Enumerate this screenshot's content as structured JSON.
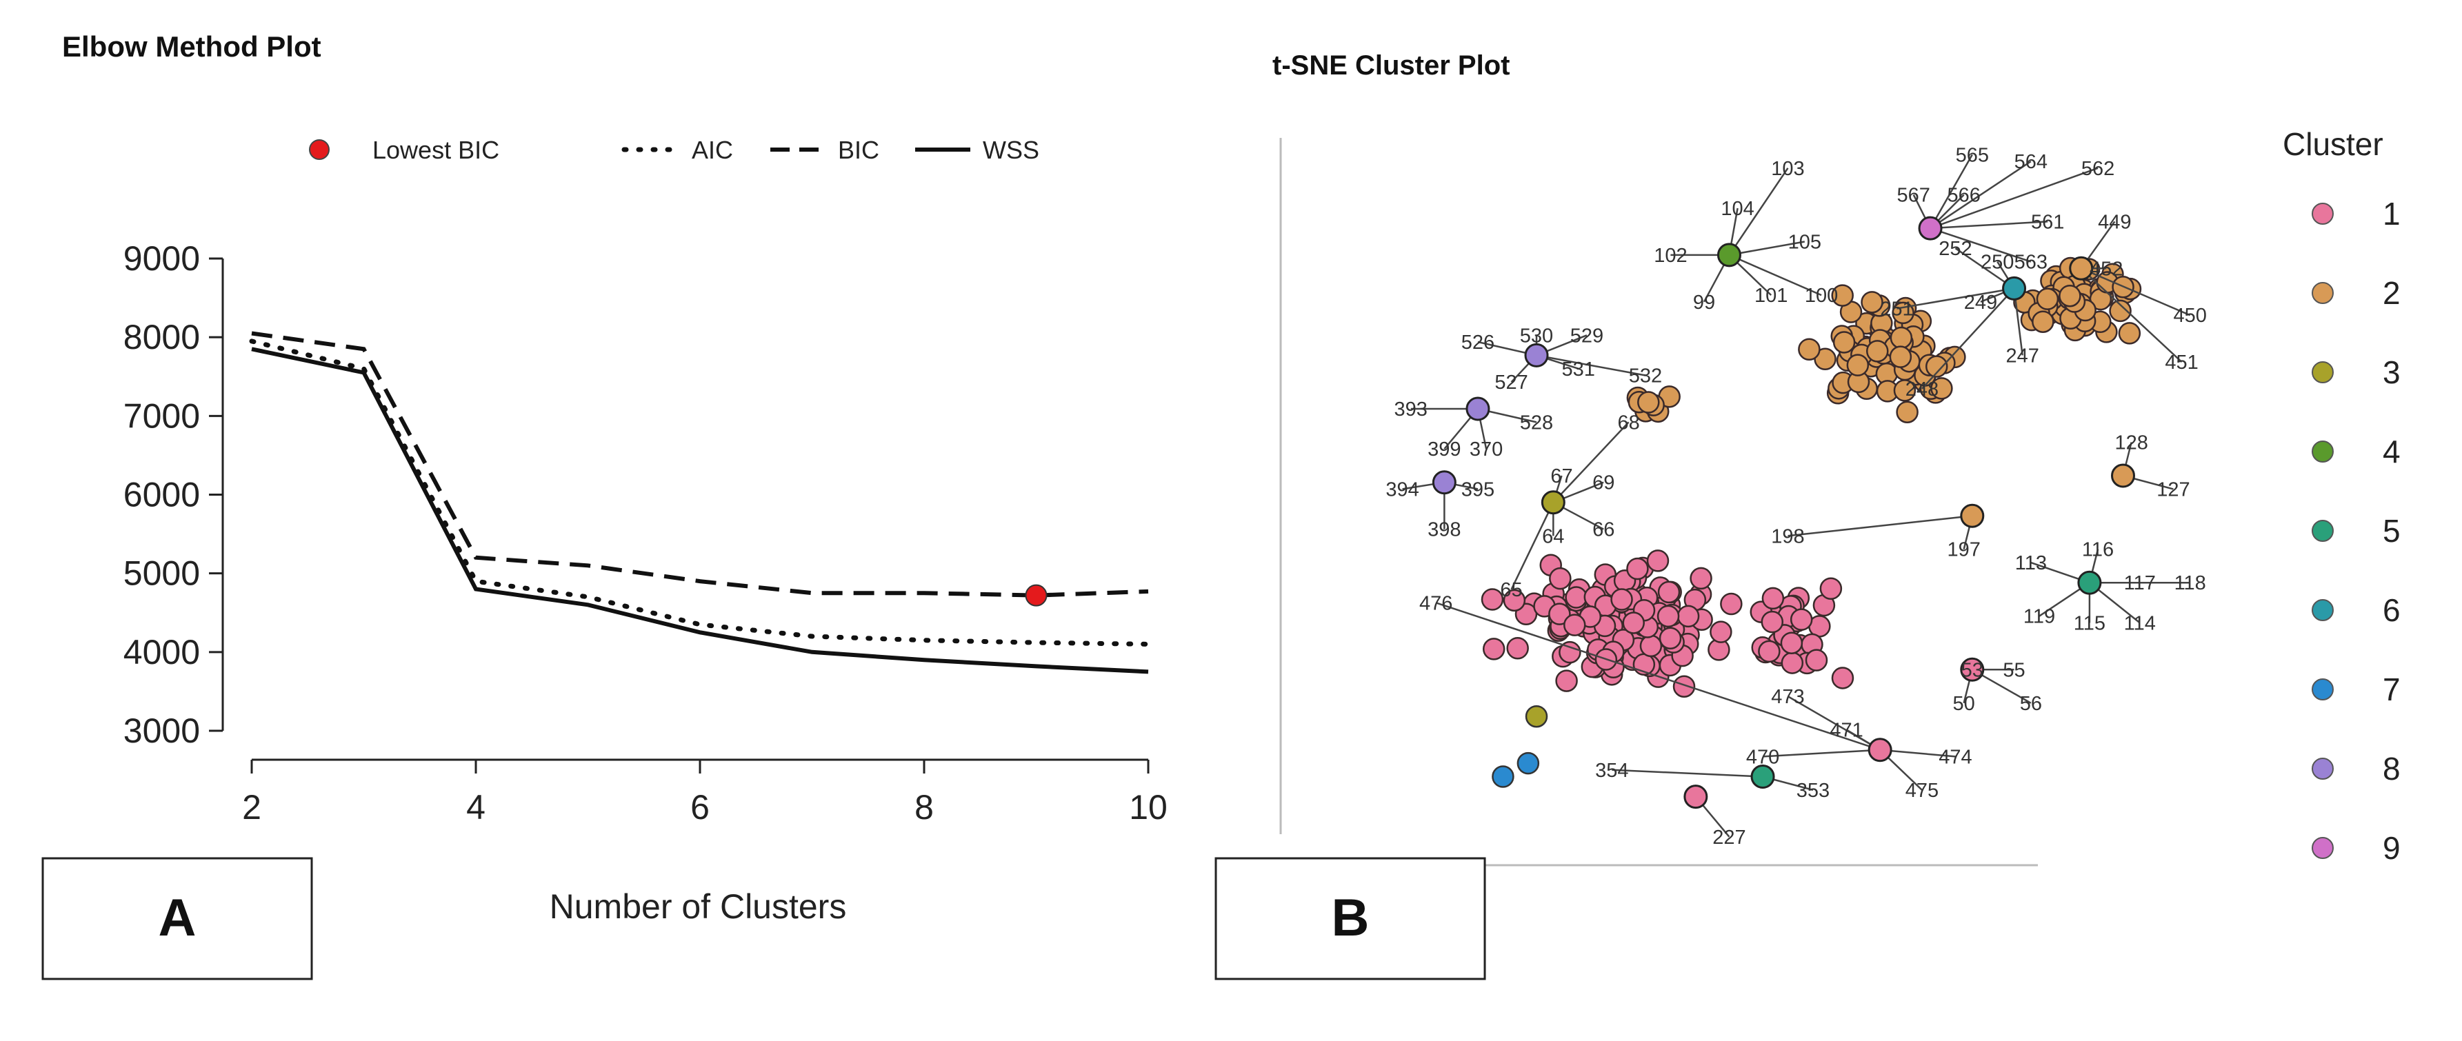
{
  "chart_data": [
    {
      "type": "line",
      "title": "Elbow Method Plot",
      "panel_label": "A",
      "xlabel": "Number of Clusters",
      "ylabel": "",
      "xlim": [
        2,
        10
      ],
      "ylim": [
        3000,
        9000
      ],
      "x": [
        2,
        3,
        4,
        5,
        6,
        7,
        8,
        9,
        10
      ],
      "xticks": [
        "2",
        "4",
        "6",
        "8",
        "10"
      ],
      "yticks": [
        "3000",
        "4000",
        "5000",
        "6000",
        "7000",
        "8000",
        "9000"
      ],
      "grid": false,
      "legend_position": "top",
      "series": [
        {
          "name": "AIC",
          "style": "dotted",
          "values": [
            7950,
            7600,
            4900,
            4700,
            4350,
            4200,
            4150,
            4120,
            4100
          ]
        },
        {
          "name": "BIC",
          "style": "dashed",
          "values": [
            8050,
            7850,
            5200,
            5100,
            4900,
            4750,
            4750,
            4720,
            4770
          ]
        },
        {
          "name": "WSS",
          "style": "solid",
          "values": [
            7850,
            7550,
            4800,
            4600,
            4250,
            4000,
            3900,
            3820,
            3750
          ]
        }
      ],
      "highlight": {
        "name": "Lowest BIC",
        "x": 9,
        "y": 4720,
        "color": "#e41a1c"
      }
    },
    {
      "type": "scatter",
      "title": "t-SNE Cluster Plot",
      "panel_label": "B",
      "xlim": [
        0,
        100
      ],
      "ylim": [
        0,
        100
      ],
      "legend_title": "Cluster",
      "legend_position": "right",
      "clusters": [
        {
          "name": "1",
          "color": "#e8769c"
        },
        {
          "name": "2",
          "color": "#d89a56"
        },
        {
          "name": "3",
          "color": "#a8a22a"
        },
        {
          "name": "4",
          "color": "#5a9a2c"
        },
        {
          "name": "5",
          "color": "#2aa07a"
        },
        {
          "name": "6",
          "color": "#2a9aa8"
        },
        {
          "name": "7",
          "color": "#2a8ad0"
        },
        {
          "name": "8",
          "color": "#9a82d4"
        },
        {
          "name": "9",
          "color": "#d070c8"
        }
      ],
      "labeled_points": [
        {
          "c": 4,
          "x": 43,
          "y": 83,
          "labels": [
            {
              "t": "103",
              "x": 50,
              "y": 96
            },
            {
              "t": "104",
              "x": 44,
              "y": 90
            },
            {
              "t": "102",
              "x": 36,
              "y": 83
            },
            {
              "t": "105",
              "x": 52,
              "y": 85
            },
            {
              "t": "99",
              "x": 40,
              "y": 76
            },
            {
              "t": "101",
              "x": 48,
              "y": 77
            },
            {
              "t": "100",
              "x": 54,
              "y": 77
            }
          ]
        },
        {
          "c": 9,
          "x": 67,
          "y": 87,
          "labels": [
            {
              "t": "565",
              "x": 72,
              "y": 98
            },
            {
              "t": "564",
              "x": 79,
              "y": 97
            },
            {
              "t": "562",
              "x": 87,
              "y": 96
            },
            {
              "t": "567",
              "x": 65,
              "y": 92
            },
            {
              "t": "566",
              "x": 71,
              "y": 92
            },
            {
              "t": "561",
              "x": 81,
              "y": 88
            },
            {
              "t": "563",
              "x": 79,
              "y": 82
            }
          ]
        },
        {
          "c": 6,
          "x": 77,
          "y": 78,
          "labels": [
            {
              "t": "252",
              "x": 70,
              "y": 84
            },
            {
              "t": "250",
              "x": 75,
              "y": 82
            },
            {
              "t": "249",
              "x": 73,
              "y": 76
            },
            {
              "t": "251",
              "x": 63,
              "y": 75
            },
            {
              "t": "247",
              "x": 78,
              "y": 68
            },
            {
              "t": "248",
              "x": 66,
              "y": 63
            }
          ]
        },
        {
          "c": 8,
          "x": 20,
          "y": 68,
          "labels": [
            {
              "t": "526",
              "x": 13,
              "y": 70
            },
            {
              "t": "530",
              "x": 20,
              "y": 71
            },
            {
              "t": "529",
              "x": 26,
              "y": 71
            },
            {
              "t": "527",
              "x": 17,
              "y": 64
            },
            {
              "t": "531",
              "x": 25,
              "y": 66
            },
            {
              "t": "532",
              "x": 33,
              "y": 65
            }
          ]
        },
        {
          "c": 8,
          "x": 13,
          "y": 60,
          "labels": [
            {
              "t": "528",
              "x": 20,
              "y": 58
            },
            {
              "t": "393",
              "x": 5,
              "y": 60
            },
            {
              "t": "399",
              "x": 9,
              "y": 54
            },
            {
              "t": "370",
              "x": 14,
              "y": 54
            }
          ]
        },
        {
          "c": 8,
          "x": 9,
          "y": 49,
          "labels": [
            {
              "t": "394",
              "x": 4,
              "y": 48
            },
            {
              "t": "395",
              "x": 13,
              "y": 48
            },
            {
              "t": "398",
              "x": 9,
              "y": 42
            }
          ]
        },
        {
          "c": 3,
          "x": 22,
          "y": 46,
          "labels": [
            {
              "t": "68",
              "x": 31,
              "y": 58
            },
            {
              "t": "67",
              "x": 23,
              "y": 50
            },
            {
              "t": "69",
              "x": 28,
              "y": 49
            },
            {
              "t": "64",
              "x": 22,
              "y": 41
            },
            {
              "t": "66",
              "x": 28,
              "y": 42
            },
            {
              "t": "65",
              "x": 17,
              "y": 33
            }
          ]
        },
        {
          "c": 2,
          "x": 85,
          "y": 81,
          "labels": [
            {
              "t": "449",
              "x": 89,
              "y": 88
            },
            {
              "t": "452",
              "x": 88,
              "y": 81
            },
            {
              "t": "450",
              "x": 98,
              "y": 74
            },
            {
              "t": "451",
              "x": 97,
              "y": 67
            }
          ]
        },
        {
          "c": 2,
          "x": 90,
          "y": 50,
          "labels": [
            {
              "t": "128",
              "x": 91,
              "y": 55
            },
            {
              "t": "127",
              "x": 96,
              "y": 48
            }
          ]
        },
        {
          "c": 2,
          "x": 72,
          "y": 44,
          "labels": [
            {
              "t": "198",
              "x": 50,
              "y": 41
            },
            {
              "t": "197",
              "x": 71,
              "y": 39
            }
          ]
        },
        {
          "c": 5,
          "x": 86,
          "y": 34,
          "labels": [
            {
              "t": "113",
              "x": 79,
              "y": 37
            },
            {
              "t": "116",
              "x": 87,
              "y": 39
            },
            {
              "t": "117",
              "x": 92,
              "y": 34
            },
            {
              "t": "118",
              "x": 98,
              "y": 34
            },
            {
              "t": "119",
              "x": 80,
              "y": 29
            },
            {
              "t": "115",
              "x": 86,
              "y": 28
            },
            {
              "t": "114",
              "x": 92,
              "y": 28
            }
          ]
        },
        {
          "c": 1,
          "x": 72,
          "y": 21,
          "labels": [
            {
              "t": "53",
              "x": 72,
              "y": 21
            },
            {
              "t": "55",
              "x": 77,
              "y": 21
            },
            {
              "t": "50",
              "x": 71,
              "y": 16
            },
            {
              "t": "56",
              "x": 79,
              "y": 16
            }
          ]
        },
        {
          "c": 1,
          "x": 61,
          "y": 9,
          "labels": [
            {
              "t": "476",
              "x": 8,
              "y": 31
            },
            {
              "t": "473",
              "x": 50,
              "y": 17
            },
            {
              "t": "471",
              "x": 57,
              "y": 12
            },
            {
              "t": "470",
              "x": 47,
              "y": 8
            },
            {
              "t": "474",
              "x": 70,
              "y": 8
            },
            {
              "t": "475",
              "x": 66,
              "y": 3
            }
          ]
        },
        {
          "c": 5,
          "x": 47,
          "y": 5,
          "labels": [
            {
              "t": "354",
              "x": 29,
              "y": 6
            },
            {
              "t": "353",
              "x": 53,
              "y": 3
            }
          ]
        },
        {
          "c": 1,
          "x": 39,
          "y": 2,
          "labels": [
            {
              "t": "227",
              "x": 43,
              "y": -4
            }
          ]
        }
      ]
    }
  ]
}
